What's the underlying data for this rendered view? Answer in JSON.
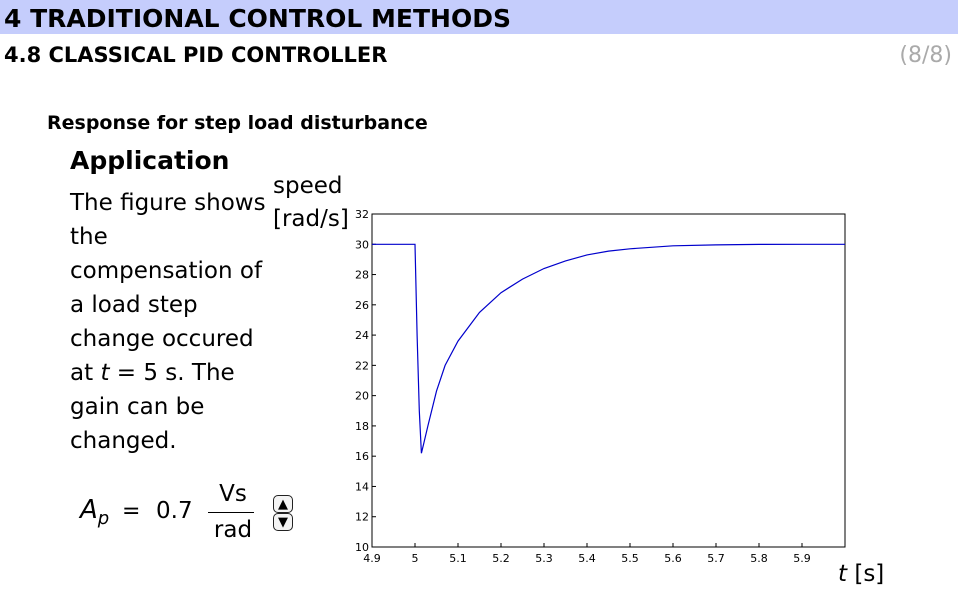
{
  "header": {
    "chapter_title": "4 TRADITIONAL CONTROL METHODS",
    "section_title": "4.8 CLASSICAL PID CONTROLLER",
    "page_indicator": "(8/8)"
  },
  "content": {
    "subtitle": "Response for step load disturbance",
    "application_heading": "Application",
    "description_before_var": "The figure shows the compensation of a load step change occured at ",
    "description_var": "t",
    "description_after_var": " = 5 s. The gain can be changed."
  },
  "gain_control": {
    "symbol": "A",
    "subscript": "p",
    "equals": "=",
    "value": "0.7",
    "unit_numerator": "Vs",
    "unit_denominator": "rad",
    "up_icon": "triangle-up-icon",
    "down_icon": "triangle-down-icon"
  },
  "chart_data": {
    "type": "line",
    "ylabel_line1": "speed",
    "ylabel_line2": "[rad/s]",
    "xlabel_var": "t",
    "xlabel_unit": " [s]",
    "xlim": [
      4.9,
      6.0
    ],
    "ylim": [
      10,
      32
    ],
    "x_ticks": [
      "4.9",
      "5",
      "5.1",
      "5.2",
      "5.3",
      "5.4",
      "5.5",
      "5.6",
      "5.7",
      "5.8",
      "5.9"
    ],
    "y_ticks": [
      "10",
      "12",
      "14",
      "16",
      "18",
      "20",
      "22",
      "24",
      "26",
      "28",
      "30",
      "32"
    ],
    "line_color": "#0000cc",
    "series": [
      {
        "x": [
          4.9,
          5.0,
          5.0,
          5.005,
          5.01,
          5.015,
          5.02,
          5.03,
          5.05,
          5.07,
          5.1,
          5.15,
          5.2,
          5.25,
          5.3,
          5.35,
          5.4,
          5.45,
          5.5,
          5.6,
          5.7,
          5.8,
          5.9,
          6.0
        ],
        "y": [
          30,
          30,
          30,
          24,
          19,
          16.2,
          16.8,
          18.0,
          20.3,
          22.0,
          23.6,
          25.5,
          26.8,
          27.7,
          28.4,
          28.9,
          29.3,
          29.55,
          29.7,
          29.9,
          29.96,
          29.99,
          30,
          30
        ]
      }
    ]
  }
}
